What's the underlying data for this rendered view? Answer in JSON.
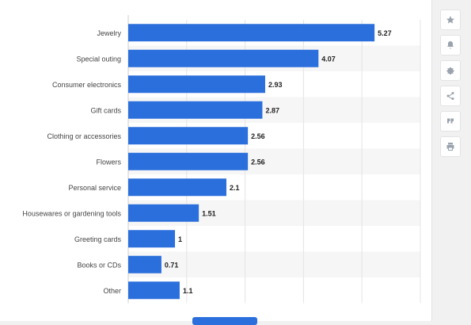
{
  "chart_data": {
    "type": "bar",
    "orientation": "horizontal",
    "categories": [
      "Jewelry",
      "Special outing",
      "Consumer electronics",
      "Gift cards",
      "Clothing or accessories",
      "Flowers",
      "Personal service",
      "Housewares or gardening tools",
      "Greeting cards",
      "Books or CDs",
      "Other"
    ],
    "values": [
      5.27,
      4.07,
      2.93,
      2.87,
      2.56,
      2.56,
      2.1,
      1.51,
      1,
      0.71,
      1.1
    ],
    "value_labels": [
      "5.27",
      "4.07",
      "2.93",
      "2.87",
      "2.56",
      "2.56",
      "2.1",
      "1.51",
      "1",
      "0.71",
      "1.1"
    ],
    "xlim": [
      0,
      6.25
    ],
    "grid": true,
    "bar_color": "#2a6fdb"
  },
  "toolbar": {
    "icons": [
      "star-icon",
      "bell-icon",
      "gear-icon",
      "share-icon",
      "quote-icon",
      "print-icon"
    ]
  },
  "colors": {
    "bar": "#2a6fdb",
    "stripe": "#f6f6f6",
    "grid": "#e4e4e4",
    "label": "#444444",
    "value": "#222222"
  }
}
